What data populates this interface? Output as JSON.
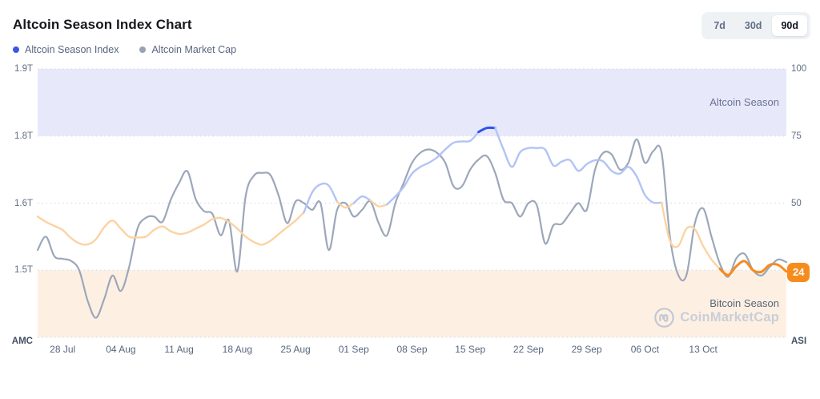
{
  "header": {
    "title": "Altcoin Season Index Chart",
    "ranges": [
      {
        "label": "7d",
        "active": false
      },
      {
        "label": "30d",
        "active": false
      },
      {
        "label": "90d",
        "active": true
      }
    ]
  },
  "legend": [
    {
      "label": "Altcoin Season Index",
      "color": "#3b57e8"
    },
    {
      "label": "Altcoin Market Cap",
      "color": "#97a2b5"
    }
  ],
  "watermark": {
    "text": "CoinMarketCap",
    "logo": "coinmarketcap-logo-icon",
    "color": "#c2c8d3"
  },
  "chart_data": {
    "type": "line",
    "title": "Altcoin Season Index Chart",
    "grid": "horizontal-dotted",
    "x_tick_labels": [
      "28 Jul",
      "04 Aug",
      "11 Aug",
      "18 Aug",
      "25 Aug",
      "01 Sep",
      "08 Sep",
      "15 Sep",
      "22 Sep",
      "29 Sep",
      "06 Oct",
      "13 Oct"
    ],
    "x_tick_days": [
      3,
      10,
      17,
      24,
      31,
      38,
      45,
      52,
      59,
      66,
      73,
      80
    ],
    "days_span": 90,
    "y_axis_left": {
      "title": "AMC",
      "tick_labels": [
        "1.9T",
        "1.8T",
        "1.6T",
        "1.5T"
      ],
      "tick_values": [
        1.9,
        1.8,
        1.6,
        1.5
      ],
      "bottom_value": 1.4
    },
    "y_axis_right": {
      "title": "ASI",
      "tick_labels": [
        "100",
        "75",
        "50"
      ],
      "tick_values": [
        100,
        75,
        50
      ],
      "range": [
        0,
        100
      ]
    },
    "bands": [
      {
        "label": "Altcoin Season",
        "range": [
          75,
          100
        ],
        "color": "#e7e9fb"
      },
      {
        "label": "Bitcoin Season",
        "range": [
          0,
          25
        ],
        "color": "#fdf0e3"
      }
    ],
    "current_value_badge": {
      "text": "24",
      "color": "#f78c1e"
    },
    "colors": {
      "amc_line": "#9ca7ba",
      "asi_below_50": "#fbd3a2",
      "asi_50_to_75": "#b2c3f7",
      "asi_above_75": "#2d53ee",
      "asi_active_tail": "#f68b1f",
      "gridline": "#d9dde6"
    },
    "series": [
      {
        "name": "Altcoin Season Index",
        "axis": "right",
        "values": [
          45,
          43,
          41.5,
          40,
          37,
          35,
          34.6,
          36.5,
          41,
          43.5,
          40.5,
          37.5,
          37.2,
          37.5,
          40,
          41.3,
          39.5,
          38.5,
          39,
          40.5,
          42,
          44,
          44.5,
          43,
          40.5,
          37.5,
          35.5,
          34.5,
          36,
          38.5,
          41,
          43.5,
          46.5,
          54,
          57,
          56.5,
          50.5,
          48.3,
          50,
          52.5,
          51,
          48.8,
          49.5,
          52.5,
          56,
          61,
          63.5,
          65,
          67,
          70,
          72.5,
          73,
          73.2,
          76.5,
          78,
          78,
          70,
          63.5,
          69,
          70.5,
          70.5,
          70,
          64,
          65.5,
          66,
          62,
          64.5,
          66,
          65.5,
          62,
          61,
          63.5,
          60,
          53,
          50.2,
          50.2,
          36,
          34,
          40.5,
          40.3,
          34,
          29,
          25.5,
          23.2,
          26.5,
          28.4,
          25,
          24.4,
          27,
          27,
          24.5
        ],
        "active_tail_from_index": 82,
        "last_value_label": "24"
      },
      {
        "name": "Altcoin Market Cap",
        "axis": "left",
        "values": [
          1.53,
          1.55,
          1.521,
          1.517,
          1.514,
          1.5,
          1.455,
          1.429,
          1.457,
          1.492,
          1.469,
          1.505,
          1.562,
          1.578,
          1.58,
          1.572,
          1.61,
          1.66,
          1.695,
          1.612,
          1.588,
          1.584,
          1.552,
          1.574,
          1.498,
          1.62,
          1.682,
          1.69,
          1.683,
          1.62,
          1.57,
          1.605,
          1.6,
          1.59,
          1.6,
          1.53,
          1.59,
          1.6,
          1.58,
          1.59,
          1.605,
          1.57,
          1.552,
          1.6,
          1.66,
          1.72,
          1.75,
          1.76,
          1.75,
          1.72,
          1.65,
          1.65,
          1.7,
          1.73,
          1.74,
          1.69,
          1.61,
          1.6,
          1.58,
          1.6,
          1.597,
          1.54,
          1.567,
          1.569,
          1.585,
          1.6,
          1.59,
          1.7,
          1.75,
          1.745,
          1.7,
          1.72,
          1.79,
          1.72,
          1.755,
          1.75,
          1.55,
          1.493,
          1.493,
          1.57,
          1.592,
          1.55,
          1.51,
          1.49,
          1.518,
          1.524,
          1.5,
          1.492,
          1.505,
          1.516,
          1.512
        ]
      }
    ]
  }
}
